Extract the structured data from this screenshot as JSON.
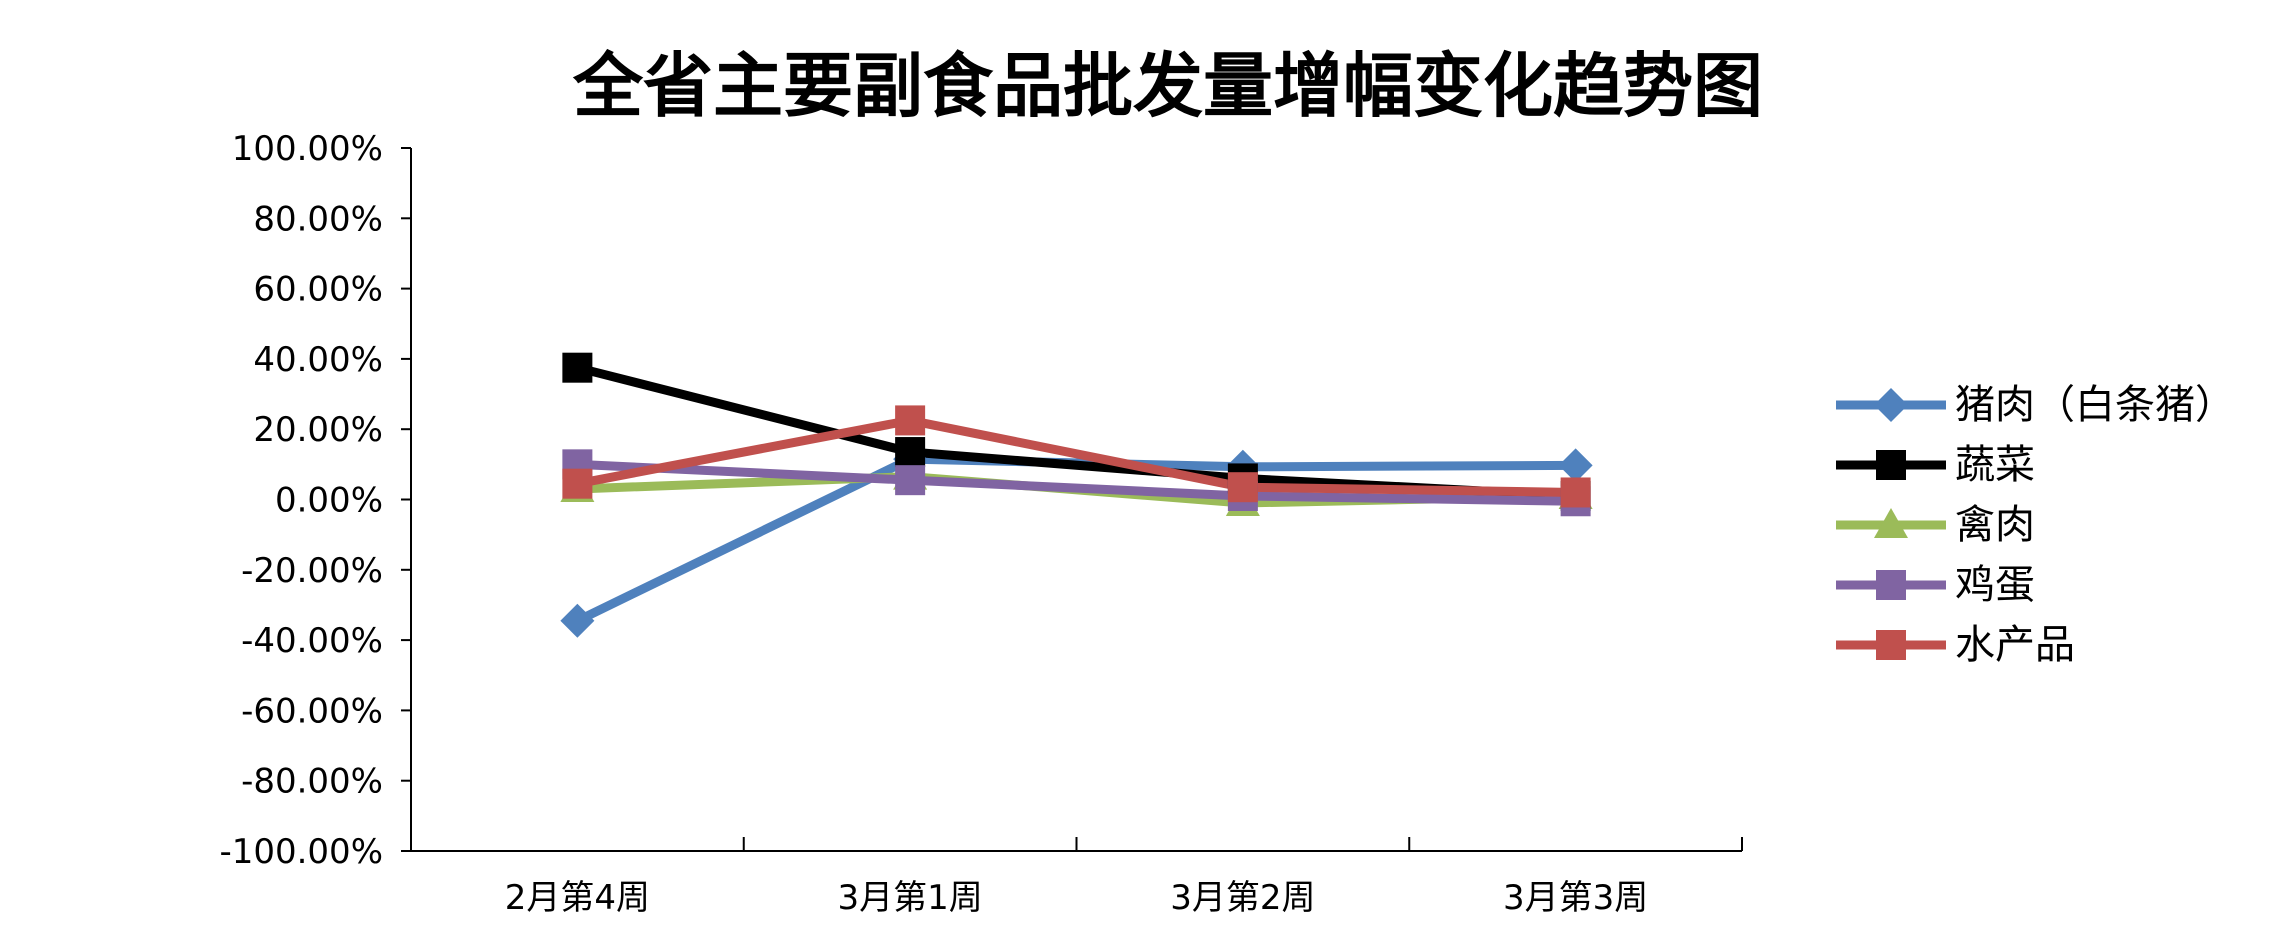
{
  "chart_data": {
    "type": "line",
    "title": "全省主要副食品批发量增幅变化趋势图",
    "xlabel": "",
    "ylabel": "",
    "categories": [
      "2月第4周",
      "3月第1周",
      "3月第2周",
      "3月第3周"
    ],
    "ylim": [
      -100,
      100
    ],
    "y_ticks": [
      100,
      80,
      60,
      40,
      20,
      0,
      -20,
      -40,
      -60,
      -80,
      -100
    ],
    "y_tick_labels": [
      "100.00%",
      "80.00%",
      "60.00%",
      "40.00%",
      "20.00%",
      "0.00%",
      "-20.00%",
      "-40.00%",
      "-60.00%",
      "-80.00%",
      "-100.00%"
    ],
    "grid": false,
    "legend_position": "right",
    "series": [
      {
        "name": "猪肉（白条猪）",
        "values": [
          -34.5,
          11.5,
          9.3,
          9.7
        ],
        "color": "#4f81bd",
        "marker": "diamond"
      },
      {
        "name": "蔬菜",
        "values": [
          37.5,
          13.5,
          6.0,
          1.0
        ],
        "color": "#000000",
        "marker": "square"
      },
      {
        "name": "禽肉",
        "values": [
          3.0,
          6.5,
          -1.0,
          1.0
        ],
        "color": "#9bbb59",
        "marker": "triangle"
      },
      {
        "name": "鸡蛋",
        "values": [
          10.0,
          5.5,
          1.0,
          -0.5
        ],
        "color": "#8064a2",
        "marker": "square"
      },
      {
        "name": "水产品",
        "values": [
          4.5,
          22.5,
          3.5,
          2.0
        ],
        "color": "#c0504d",
        "marker": "square"
      }
    ]
  }
}
